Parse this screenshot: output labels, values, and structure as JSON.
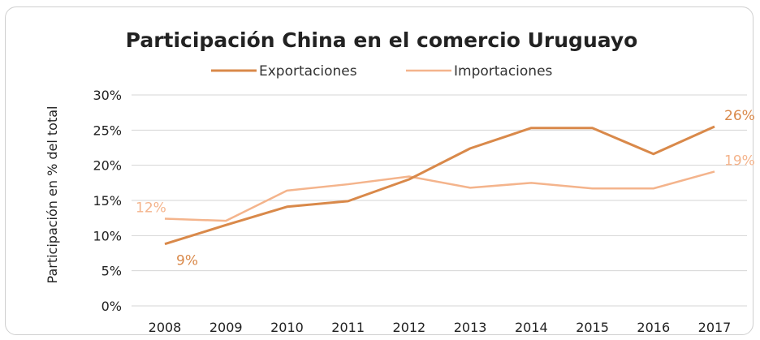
{
  "chart_data": {
    "type": "line",
    "title": "Participación China en el comercio Uruguayo",
    "ylabel": "Participación en % del total",
    "xlabel": "",
    "categories": [
      "2008",
      "2009",
      "2010",
      "2011",
      "2012",
      "2013",
      "2014",
      "2015",
      "2016",
      "2017"
    ],
    "ylim": [
      0,
      30
    ],
    "y_ticks": [
      0,
      5,
      10,
      15,
      20,
      25,
      30
    ],
    "y_tick_labels": [
      "0%",
      "5%",
      "10%",
      "15%",
      "20%",
      "25%",
      "30%"
    ],
    "grid": true,
    "legend_position": "top",
    "series": [
      {
        "name": "Exportaciones",
        "color": "#d9894a",
        "values": [
          8.8,
          11.5,
          14.1,
          14.9,
          18.0,
          22.4,
          25.3,
          25.3,
          21.6,
          25.5
        ]
      },
      {
        "name": "Importaciones",
        "color": "#f4b48c",
        "values": [
          12.4,
          12.1,
          16.4,
          17.3,
          18.4,
          16.8,
          17.5,
          16.7,
          16.7,
          19.1
        ]
      }
    ],
    "annotations": [
      {
        "series": 0,
        "index": 0,
        "text": "9%"
      },
      {
        "series": 0,
        "index": 9,
        "text": "26%"
      },
      {
        "series": 1,
        "index": 0,
        "text": "12%"
      },
      {
        "series": 1,
        "index": 9,
        "text": "19%"
      }
    ]
  }
}
